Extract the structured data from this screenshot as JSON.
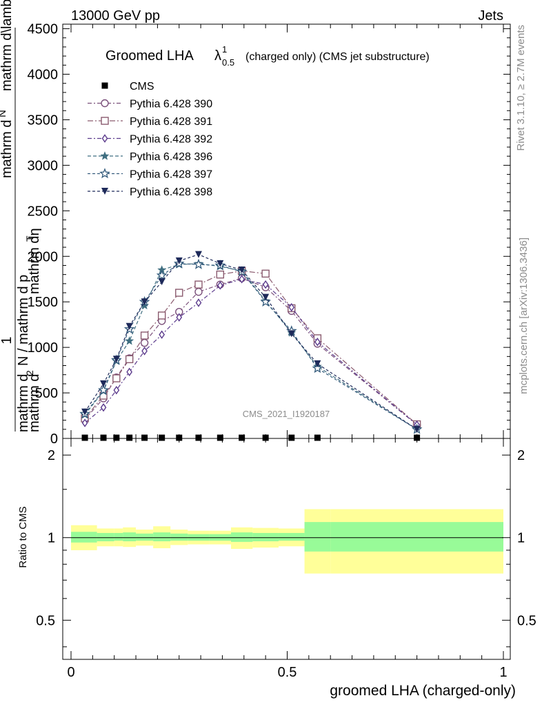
{
  "header": {
    "left": "13000 GeV pp",
    "right": "Jets"
  },
  "side_labels": {
    "rivet": "Rivet 3.1.10, ≥ 2.7M events",
    "mcplots": "mcplots.cern.ch [arXiv:1306.3436]"
  },
  "watermark": "CMS_2021_I1920187",
  "chart_data": [
    {
      "type": "line",
      "title_main": "Groomed LHA",
      "title_symbol": "λ",
      "title_sup": "1",
      "title_sub": "0.5",
      "title_rest": "(charged only) (CMS jet substructure)",
      "ylabel_num_1": "mathrm d",
      "ylabel_num_2": "N",
      "ylabel_num_3": "mathrm d\\lambda",
      "ylabel_frac1": "1",
      "ylabel_den_1": "mathrm d",
      "ylabel_den_2": "N / mathrm d p",
      "ylabel_den_3": "T",
      "ylabel_den_4": "mathrm dη",
      "ylabel_overlay_1": "mathrm d",
      "ylabel_overlay_2": "2",
      "xlim": [
        0,
        1
      ],
      "ylim": [
        0,
        4550
      ],
      "yticks": [
        0,
        500,
        1000,
        1500,
        2000,
        2500,
        3000,
        3500,
        4000,
        4500
      ],
      "ytick_labels": [
        "0",
        "500",
        "1000",
        "1500",
        "2000",
        "2500",
        "3000",
        "3500",
        "4000",
        "4500"
      ],
      "x": [
        0.032,
        0.075,
        0.105,
        0.135,
        0.17,
        0.21,
        0.25,
        0.295,
        0.345,
        0.395,
        0.45,
        0.51,
        0.57,
        0.8
      ],
      "series": [
        {
          "name": "CMS",
          "color": "#000000",
          "marker": "square-filled",
          "dash": "",
          "values": [
            0,
            0,
            0,
            0,
            0,
            0,
            0,
            0,
            0,
            0,
            0,
            0,
            0,
            0
          ]
        },
        {
          "name": "Pythia 6.428 390",
          "color": "#7a4f7a",
          "marker": "circle-open",
          "dash": "6,3,2,3",
          "values": [
            210,
            440,
            670,
            880,
            1050,
            1290,
            1390,
            1610,
            1690,
            1760,
            1660,
            1400,
            1040,
            150
          ]
        },
        {
          "name": "Pythia 6.428 391",
          "color": "#8a5a6e",
          "marker": "square-open",
          "dash": "8,3,2,3",
          "values": [
            220,
            470,
            660,
            870,
            1130,
            1350,
            1600,
            1690,
            1800,
            1840,
            1810,
            1430,
            1100,
            155
          ]
        },
        {
          "name": "Pythia 6.428 392",
          "color": "#5b3a8c",
          "marker": "diamond-open",
          "dash": "6,3,2,3",
          "values": [
            170,
            340,
            530,
            730,
            960,
            1140,
            1330,
            1490,
            1680,
            1750,
            1690,
            1440,
            1060,
            150
          ]
        },
        {
          "name": "Pythia 6.428 396",
          "color": "#3f6e80",
          "marker": "star-filled",
          "dash": "5,3",
          "values": [
            260,
            520,
            850,
            1070,
            1460,
            1850,
            1910,
            1920,
            1890,
            1840,
            1510,
            1160,
            790,
            100
          ]
        },
        {
          "name": "Pythia 6.428 397",
          "color": "#355c7d",
          "marker": "star-open",
          "dash": "4,3",
          "values": [
            270,
            530,
            860,
            1200,
            1500,
            1790,
            1920,
            1910,
            1900,
            1830,
            1500,
            1180,
            770,
            100
          ]
        },
        {
          "name": "Pythia 6.428 398",
          "color": "#1e2a5a",
          "marker": "triangle-down-filled",
          "dash": "4,3",
          "values": [
            290,
            600,
            870,
            1230,
            1500,
            1720,
            1950,
            2020,
            1920,
            1850,
            1550,
            1150,
            820,
            100
          ]
        }
      ]
    },
    {
      "type": "area",
      "ylabel": "Ratio to CMS",
      "xlabel": "groomed LHA (charged-only)",
      "xlim": [
        0,
        1
      ],
      "ylim": [
        0.36,
        2.3
      ],
      "yticks": [
        0.5,
        1,
        2
      ],
      "ytick_labels": [
        "0.5",
        "1",
        "2"
      ],
      "xticks": [
        0,
        0.5,
        1
      ],
      "xtick_labels": [
        "0",
        "0.5",
        "1"
      ],
      "reference": 1,
      "bins": [
        0,
        0.06,
        0.1,
        0.12,
        0.15,
        0.19,
        0.23,
        0.27,
        0.32,
        0.37,
        0.42,
        0.48,
        0.54,
        0.6,
        1.0
      ],
      "band_inner": {
        "color": "#98fb98",
        "lo": [
          0.96,
          0.97,
          0.975,
          0.97,
          0.975,
          0.97,
          0.975,
          0.975,
          0.975,
          0.965,
          0.97,
          0.975,
          0.89,
          0.89
        ],
        "hi": [
          1.05,
          1.04,
          1.04,
          1.045,
          1.035,
          1.045,
          1.035,
          1.03,
          1.03,
          1.045,
          1.04,
          1.04,
          1.14,
          1.14
        ]
      },
      "band_outer": {
        "color": "#ffff99",
        "lo": [
          0.9,
          0.93,
          0.93,
          0.925,
          0.935,
          0.915,
          0.94,
          0.945,
          0.945,
          0.91,
          0.92,
          0.93,
          0.74,
          0.74
        ],
        "hi": [
          1.11,
          1.08,
          1.08,
          1.09,
          1.07,
          1.1,
          1.07,
          1.06,
          1.06,
          1.09,
          1.085,
          1.08,
          1.27,
          1.27
        ]
      }
    }
  ]
}
